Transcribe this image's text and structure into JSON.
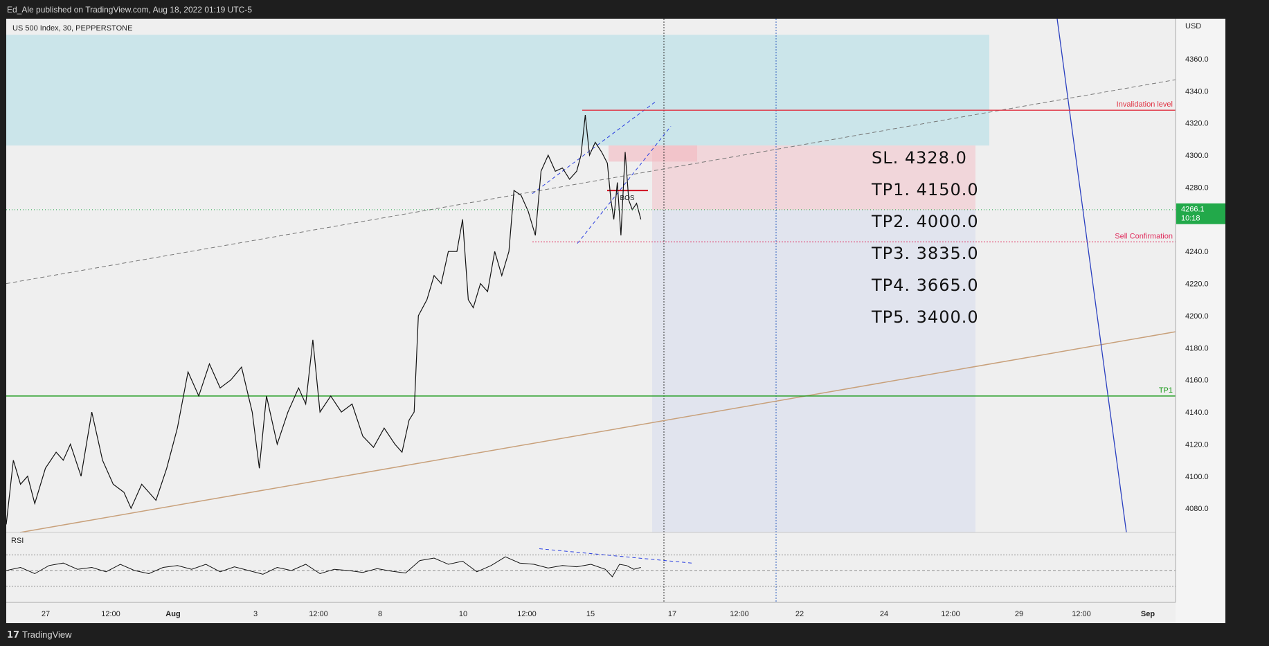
{
  "header": {
    "publish_line": "Ed_Ale published on TradingView.com, Aug 18, 2022 01:19 UTC-5"
  },
  "footer": {
    "logo_glyph": "17",
    "brand": "TradingView"
  },
  "chart_data": {
    "type": "candlestick",
    "symbol_label": "US 500 Index, 30, PEPPERSTONE",
    "currency": "USD",
    "price_axis": {
      "min": 4065,
      "max": 4385,
      "ticks": [
        4080.0,
        4100.0,
        4120.0,
        4140.0,
        4160.0,
        4180.0,
        4200.0,
        4220.0,
        4240.0,
        4260.0,
        4280.0,
        4300.0,
        4320.0,
        4340.0,
        4360.0
      ]
    },
    "time_axis": {
      "labels": [
        "27",
        "12:00",
        "Aug",
        "3",
        "12:00",
        "8",
        "10",
        "12:00",
        "15",
        "17",
        "12:00",
        "22",
        "24",
        "12:00",
        "29",
        "12:00",
        "Sep"
      ]
    },
    "last_price": {
      "value": "4266.1",
      "countdown": "10:18",
      "color": "#22a94a"
    },
    "price_path": [
      [
        0.0,
        4070
      ],
      [
        0.01,
        4110
      ],
      [
        0.02,
        4095
      ],
      [
        0.03,
        4100
      ],
      [
        0.04,
        4083
      ],
      [
        0.055,
        4105
      ],
      [
        0.07,
        4115
      ],
      [
        0.08,
        4110
      ],
      [
        0.09,
        4120
      ],
      [
        0.105,
        4100
      ],
      [
        0.12,
        4140
      ],
      [
        0.135,
        4110
      ],
      [
        0.15,
        4095
      ],
      [
        0.165,
        4090
      ],
      [
        0.175,
        4080
      ],
      [
        0.19,
        4095
      ],
      [
        0.21,
        4085
      ],
      [
        0.225,
        4105
      ],
      [
        0.24,
        4130
      ],
      [
        0.255,
        4165
      ],
      [
        0.27,
        4150
      ],
      [
        0.285,
        4170
      ],
      [
        0.3,
        4155
      ],
      [
        0.315,
        4160
      ],
      [
        0.33,
        4168
      ],
      [
        0.345,
        4140
      ],
      [
        0.355,
        4105
      ],
      [
        0.365,
        4150
      ],
      [
        0.38,
        4120
      ],
      [
        0.395,
        4140
      ],
      [
        0.41,
        4155
      ],
      [
        0.42,
        4145
      ],
      [
        0.43,
        4185
      ],
      [
        0.44,
        4140
      ],
      [
        0.455,
        4150
      ],
      [
        0.47,
        4140
      ],
      [
        0.485,
        4145
      ],
      [
        0.5,
        4125
      ],
      [
        0.515,
        4118
      ],
      [
        0.53,
        4130
      ],
      [
        0.545,
        4120
      ],
      [
        0.555,
        4115
      ],
      [
        0.565,
        4135
      ],
      [
        0.572,
        4140
      ],
      [
        0.578,
        4200
      ],
      [
        0.59,
        4210
      ],
      [
        0.6,
        4225
      ],
      [
        0.61,
        4220
      ],
      [
        0.62,
        4240
      ],
      [
        0.632,
        4240
      ],
      [
        0.64,
        4260
      ],
      [
        0.648,
        4210
      ],
      [
        0.655,
        4205
      ],
      [
        0.665,
        4220
      ],
      [
        0.675,
        4215
      ],
      [
        0.685,
        4240
      ],
      [
        0.695,
        4225
      ],
      [
        0.705,
        4240
      ],
      [
        0.712,
        4278
      ],
      [
        0.722,
        4275
      ],
      [
        0.732,
        4265
      ],
      [
        0.742,
        4250
      ],
      [
        0.75,
        4290
      ],
      [
        0.76,
        4300
      ],
      [
        0.77,
        4290
      ],
      [
        0.78,
        4292
      ],
      [
        0.79,
        4285
      ],
      [
        0.8,
        4290
      ],
      [
        0.806,
        4300
      ],
      [
        0.812,
        4325
      ],
      [
        0.818,
        4300
      ],
      [
        0.826,
        4308
      ],
      [
        0.835,
        4302
      ],
      [
        0.843,
        4295
      ],
      [
        0.848,
        4272
      ],
      [
        0.852,
        4260
      ],
      [
        0.857,
        4283
      ],
      [
        0.862,
        4250
      ],
      [
        0.868,
        4302
      ],
      [
        0.873,
        4272
      ],
      [
        0.878,
        4266
      ],
      [
        0.884,
        4270
      ],
      [
        0.89,
        4260
      ]
    ],
    "rsi_path": [
      [
        0.0,
        50
      ],
      [
        0.02,
        55
      ],
      [
        0.04,
        45
      ],
      [
        0.06,
        58
      ],
      [
        0.08,
        62
      ],
      [
        0.1,
        52
      ],
      [
        0.12,
        55
      ],
      [
        0.14,
        48
      ],
      [
        0.16,
        60
      ],
      [
        0.18,
        50
      ],
      [
        0.2,
        45
      ],
      [
        0.22,
        55
      ],
      [
        0.24,
        58
      ],
      [
        0.26,
        52
      ],
      [
        0.28,
        60
      ],
      [
        0.3,
        48
      ],
      [
        0.32,
        56
      ],
      [
        0.34,
        50
      ],
      [
        0.36,
        44
      ],
      [
        0.38,
        55
      ],
      [
        0.4,
        50
      ],
      [
        0.42,
        60
      ],
      [
        0.44,
        45
      ],
      [
        0.46,
        52
      ],
      [
        0.48,
        50
      ],
      [
        0.5,
        47
      ],
      [
        0.52,
        53
      ],
      [
        0.54,
        49
      ],
      [
        0.56,
        46
      ],
      [
        0.58,
        66
      ],
      [
        0.6,
        70
      ],
      [
        0.62,
        60
      ],
      [
        0.64,
        65
      ],
      [
        0.66,
        48
      ],
      [
        0.68,
        58
      ],
      [
        0.7,
        72
      ],
      [
        0.72,
        62
      ],
      [
        0.74,
        60
      ],
      [
        0.76,
        54
      ],
      [
        0.78,
        58
      ],
      [
        0.8,
        56
      ],
      [
        0.82,
        60
      ],
      [
        0.84,
        52
      ],
      [
        0.85,
        40
      ],
      [
        0.86,
        60
      ],
      [
        0.87,
        58
      ],
      [
        0.88,
        52
      ],
      [
        0.89,
        55
      ]
    ],
    "zones": {
      "supply_top": 4375,
      "supply_bottom": 4306,
      "stop_top": 4306,
      "stop_bottom": 4266,
      "target_top": 4266,
      "target_bottom": 4065
    },
    "levels": [
      {
        "name": "invalidation",
        "label": "Invalidation level",
        "price": 4328,
        "color": "#e03040"
      },
      {
        "name": "sell-confirmation",
        "label": "Sell Confirmation",
        "price": 4246,
        "color": "#e03060"
      },
      {
        "name": "tp1-line",
        "label": "TP1",
        "price": 4150,
        "color": "#1a9a1a"
      }
    ],
    "bos_label": "BOS",
    "rsi": {
      "label": "RSI",
      "levels": [
        "75.00",
        "25.00"
      ]
    },
    "trade_labels": [
      "SL. 4328.0",
      "TP1. 4150.0",
      "TP2. 4000.0",
      "TP3. 3835.0",
      "TP4. 3665.0",
      "TP5. 3400.0"
    ]
  }
}
